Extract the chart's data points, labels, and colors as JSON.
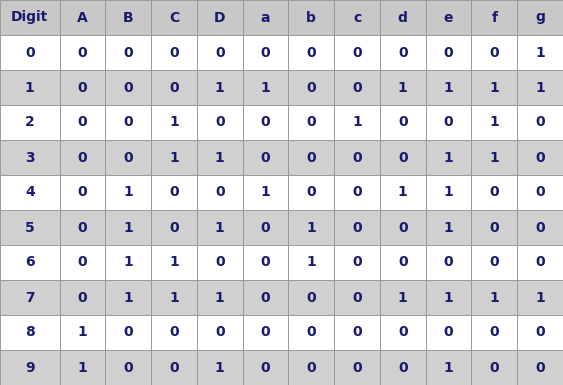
{
  "headers": [
    "Digit",
    "A",
    "B",
    "C",
    "D",
    "a",
    "b",
    "c",
    "d",
    "e",
    "f",
    "g"
  ],
  "rows": [
    [
      "0",
      "0",
      "0",
      "0",
      "0",
      "0",
      "0",
      "0",
      "0",
      "0",
      "0",
      "1"
    ],
    [
      "1",
      "0",
      "0",
      "0",
      "1",
      "1",
      "0",
      "0",
      "1",
      "1",
      "1",
      "1"
    ],
    [
      "2",
      "0",
      "0",
      "1",
      "0",
      "0",
      "0",
      "1",
      "0",
      "0",
      "1",
      "0"
    ],
    [
      "3",
      "0",
      "0",
      "1",
      "1",
      "0",
      "0",
      "0",
      "0",
      "1",
      "1",
      "0"
    ],
    [
      "4",
      "0",
      "1",
      "0",
      "0",
      "1",
      "0",
      "0",
      "1",
      "1",
      "0",
      "0"
    ],
    [
      "5",
      "0",
      "1",
      "0",
      "1",
      "0",
      "1",
      "0",
      "0",
      "1",
      "0",
      "0"
    ],
    [
      "6",
      "0",
      "1",
      "1",
      "0",
      "0",
      "1",
      "0",
      "0",
      "0",
      "0",
      "0"
    ],
    [
      "7",
      "0",
      "1",
      "1",
      "1",
      "0",
      "0",
      "0",
      "1",
      "1",
      "1",
      "1"
    ],
    [
      "8",
      "1",
      "0",
      "0",
      "0",
      "0",
      "0",
      "0",
      "0",
      "0",
      "0",
      "0"
    ],
    [
      "9",
      "1",
      "0",
      "0",
      "1",
      "0",
      "0",
      "0",
      "0",
      "1",
      "0",
      "0"
    ]
  ],
  "header_bg": "#c8c8c8",
  "row_bg_even": "#ffffff",
  "row_bg_odd": "#d0d0d0",
  "text_color": "#1a1a6e",
  "border_color": "#999999",
  "header_fontsize": 10,
  "cell_fontsize": 10,
  "fig_width": 5.63,
  "fig_height": 3.85,
  "col_widths": [
    1.3,
    1.0,
    1.0,
    1.0,
    1.0,
    1.0,
    1.0,
    1.0,
    1.0,
    1.0,
    1.0,
    1.0
  ]
}
